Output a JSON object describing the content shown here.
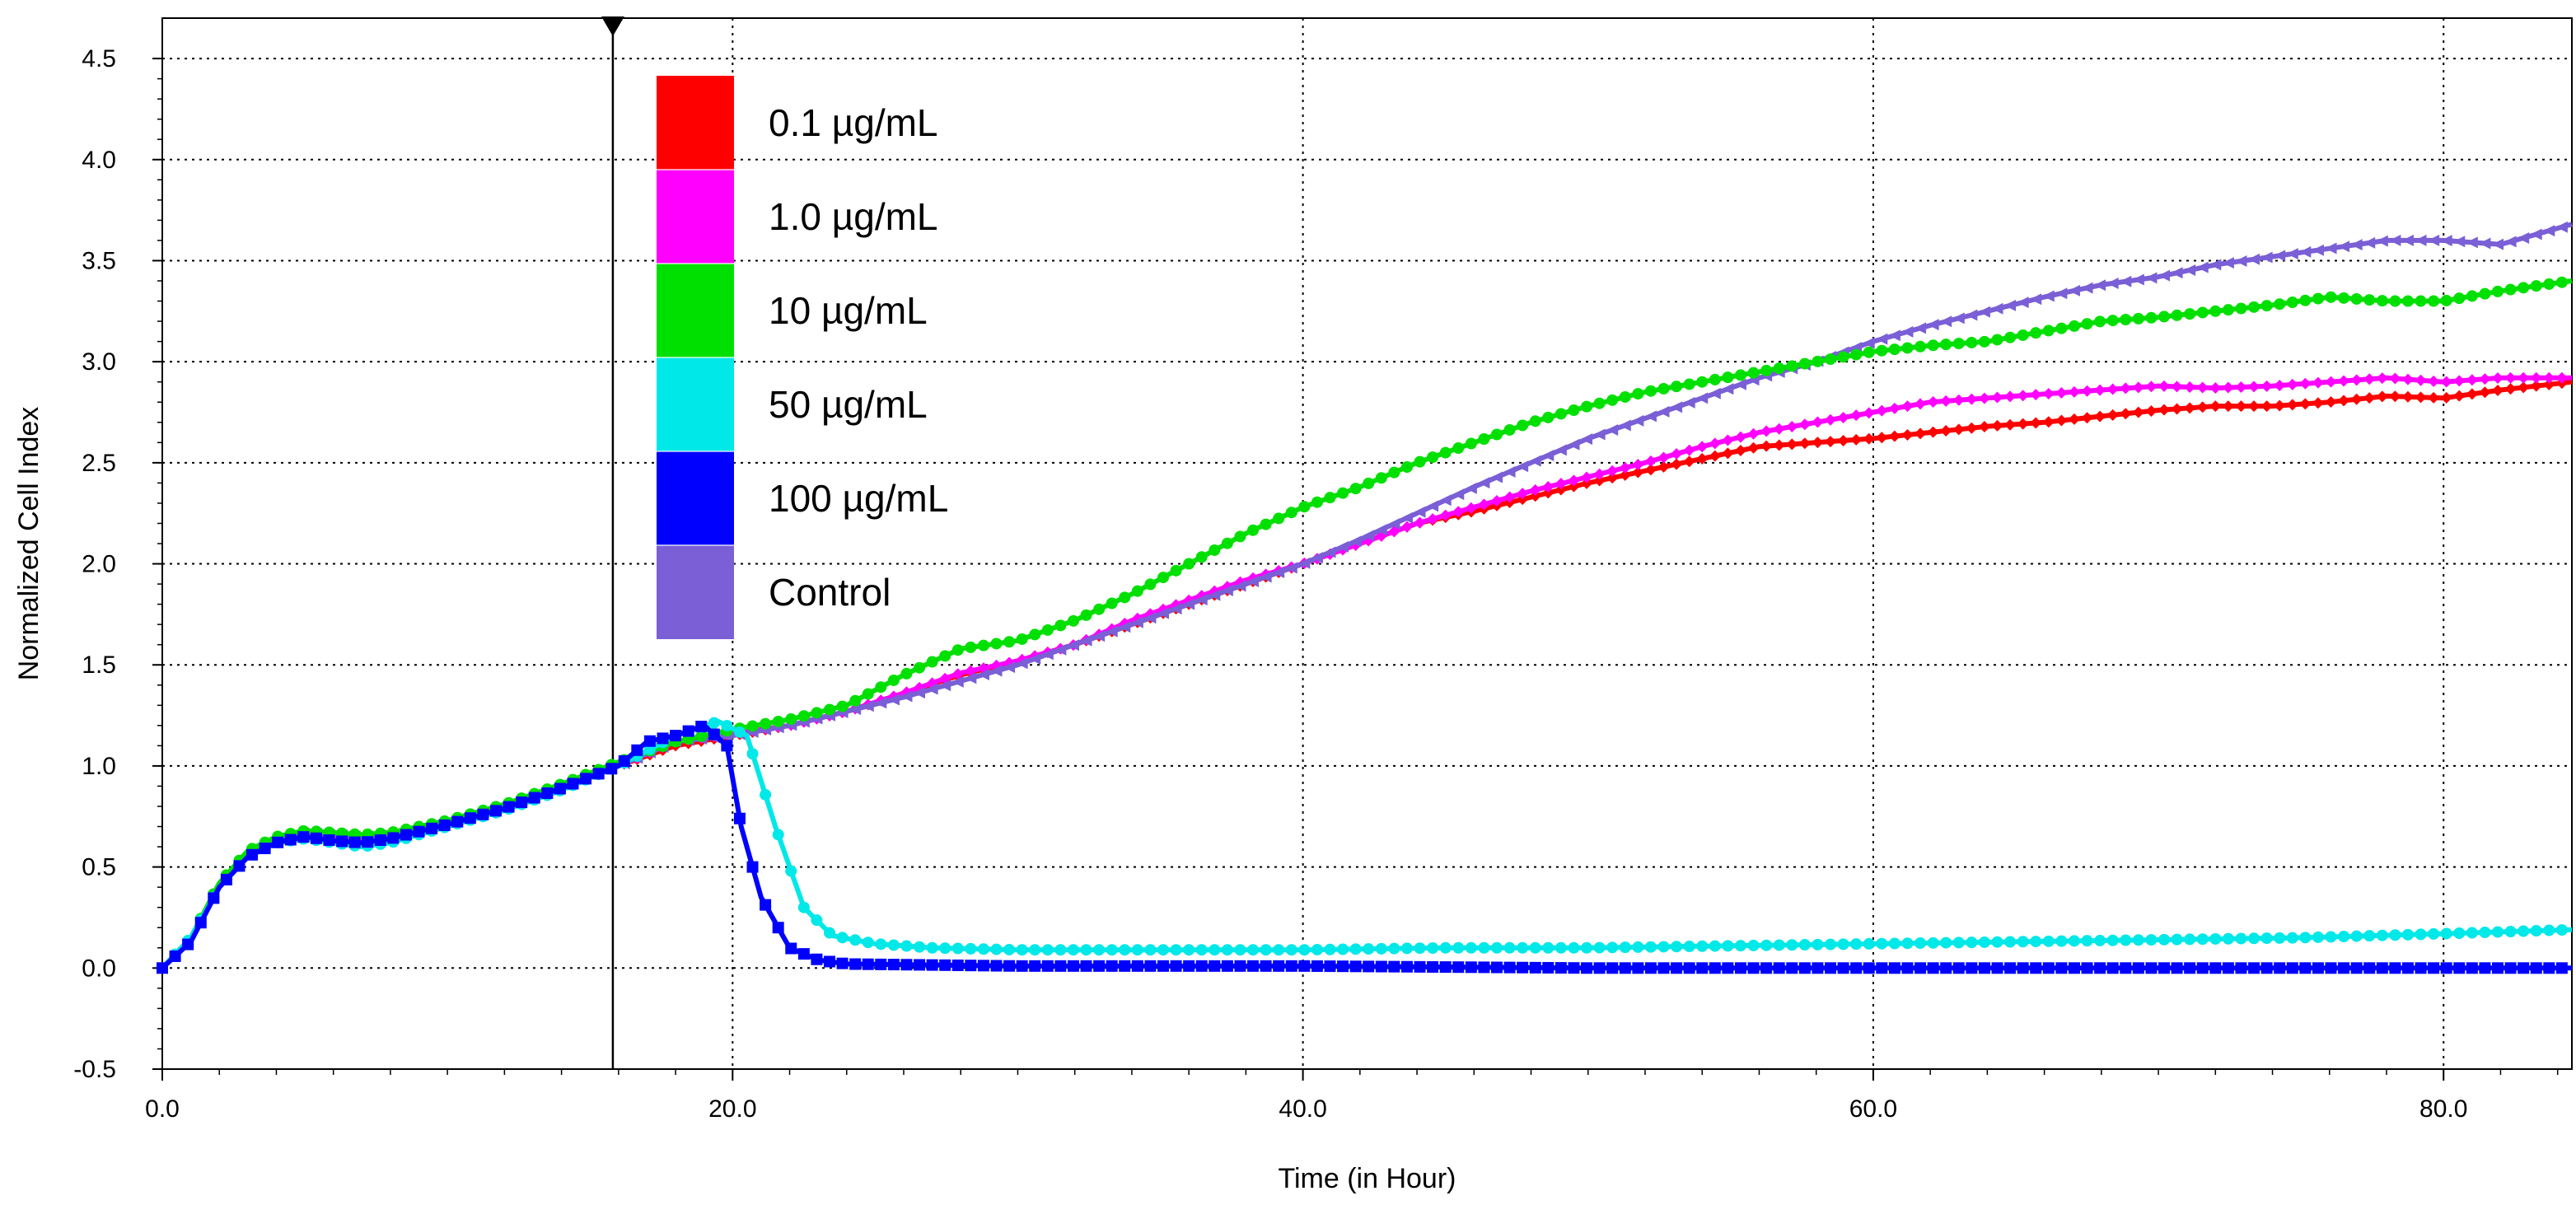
{
  "chart_data": {
    "type": "line",
    "title": "",
    "xlabel": "Time (in Hour)",
    "ylabel": "Normalized Cell Index",
    "xlim": [
      0,
      84.5
    ],
    "ylim": [
      -0.5,
      4.7
    ],
    "grid": true,
    "x_ticks": [
      0,
      20,
      40,
      60,
      80
    ],
    "x_tick_labels": [
      "0.0",
      "20.0",
      "40.0",
      "60.0",
      "80.0"
    ],
    "y_ticks": [
      -0.5,
      0,
      0.5,
      1,
      1.5,
      2,
      2.5,
      3,
      3.5,
      4,
      4.5
    ],
    "y_tick_labels": [
      "-0.5",
      "0.0",
      "0.5",
      "1.0",
      "1.5",
      "2.0",
      "2.5",
      "3.0",
      "3.5",
      "4.0",
      "4.5"
    ],
    "treatment_marker_x": 15.8,
    "legend_position": "top-left",
    "series": [
      {
        "name": "0.1 µg/mL",
        "color": "#ff0000",
        "marker": "diamond",
        "points": [
          [
            0,
            0
          ],
          [
            1,
            0.15
          ],
          [
            2,
            0.4
          ],
          [
            3,
            0.55
          ],
          [
            4,
            0.62
          ],
          [
            5,
            0.66
          ],
          [
            6,
            0.64
          ],
          [
            7,
            0.63
          ],
          [
            8,
            0.65
          ],
          [
            10,
            0.72
          ],
          [
            12,
            0.8
          ],
          [
            14,
            0.9
          ],
          [
            16,
            1.0
          ],
          [
            18,
            1.1
          ],
          [
            20,
            1.15
          ],
          [
            22,
            1.2
          ],
          [
            24,
            1.27
          ],
          [
            26,
            1.36
          ],
          [
            28,
            1.45
          ],
          [
            30,
            1.52
          ],
          [
            32,
            1.6
          ],
          [
            34,
            1.7
          ],
          [
            36,
            1.8
          ],
          [
            38,
            1.9
          ],
          [
            40,
            2.0
          ],
          [
            42,
            2.1
          ],
          [
            44,
            2.2
          ],
          [
            46,
            2.26
          ],
          [
            48,
            2.33
          ],
          [
            50,
            2.4
          ],
          [
            52,
            2.46
          ],
          [
            54,
            2.52
          ],
          [
            56,
            2.58
          ],
          [
            58,
            2.6
          ],
          [
            60,
            2.62
          ],
          [
            62,
            2.65
          ],
          [
            64,
            2.68
          ],
          [
            66,
            2.7
          ],
          [
            68,
            2.73
          ],
          [
            70,
            2.76
          ],
          [
            72,
            2.78
          ],
          [
            74,
            2.78
          ],
          [
            76,
            2.8
          ],
          [
            78,
            2.83
          ],
          [
            80,
            2.82
          ],
          [
            82,
            2.86
          ],
          [
            84.5,
            2.9
          ]
        ]
      },
      {
        "name": "1.0 µg/mL",
        "color": "#ff00ff",
        "marker": "diamond",
        "points": [
          [
            0,
            0
          ],
          [
            1,
            0.15
          ],
          [
            2,
            0.4
          ],
          [
            3,
            0.56
          ],
          [
            4,
            0.63
          ],
          [
            5,
            0.67
          ],
          [
            6,
            0.65
          ],
          [
            7,
            0.64
          ],
          [
            8,
            0.66
          ],
          [
            10,
            0.72
          ],
          [
            12,
            0.8
          ],
          [
            14,
            0.9
          ],
          [
            16,
            1.0
          ],
          [
            18,
            1.12
          ],
          [
            20,
            1.16
          ],
          [
            22,
            1.2
          ],
          [
            24,
            1.27
          ],
          [
            26,
            1.36
          ],
          [
            28,
            1.46
          ],
          [
            30,
            1.52
          ],
          [
            32,
            1.6
          ],
          [
            34,
            1.72
          ],
          [
            36,
            1.82
          ],
          [
            38,
            1.92
          ],
          [
            40,
            2.0
          ],
          [
            42,
            2.1
          ],
          [
            44,
            2.2
          ],
          [
            46,
            2.28
          ],
          [
            48,
            2.36
          ],
          [
            50,
            2.43
          ],
          [
            52,
            2.5
          ],
          [
            54,
            2.58
          ],
          [
            56,
            2.65
          ],
          [
            58,
            2.7
          ],
          [
            60,
            2.75
          ],
          [
            62,
            2.8
          ],
          [
            64,
            2.82
          ],
          [
            66,
            2.84
          ],
          [
            68,
            2.86
          ],
          [
            70,
            2.88
          ],
          [
            72,
            2.87
          ],
          [
            74,
            2.88
          ],
          [
            76,
            2.9
          ],
          [
            78,
            2.92
          ],
          [
            80,
            2.9
          ],
          [
            82,
            2.92
          ],
          [
            84.5,
            2.92
          ]
        ]
      },
      {
        "name": "10 µg/mL",
        "color": "#00e000",
        "marker": "circle",
        "points": [
          [
            0,
            0
          ],
          [
            1,
            0.15
          ],
          [
            2,
            0.42
          ],
          [
            3,
            0.58
          ],
          [
            4,
            0.65
          ],
          [
            5,
            0.68
          ],
          [
            6,
            0.67
          ],
          [
            7,
            0.66
          ],
          [
            8,
            0.67
          ],
          [
            10,
            0.73
          ],
          [
            12,
            0.81
          ],
          [
            14,
            0.91
          ],
          [
            16,
            1.02
          ],
          [
            18,
            1.12
          ],
          [
            20,
            1.18
          ],
          [
            22,
            1.23
          ],
          [
            24,
            1.3
          ],
          [
            26,
            1.45
          ],
          [
            28,
            1.58
          ],
          [
            30,
            1.62
          ],
          [
            32,
            1.72
          ],
          [
            34,
            1.85
          ],
          [
            36,
            2.0
          ],
          [
            38,
            2.15
          ],
          [
            40,
            2.28
          ],
          [
            42,
            2.38
          ],
          [
            44,
            2.5
          ],
          [
            46,
            2.6
          ],
          [
            48,
            2.7
          ],
          [
            50,
            2.78
          ],
          [
            52,
            2.85
          ],
          [
            54,
            2.9
          ],
          [
            56,
            2.95
          ],
          [
            58,
            3.0
          ],
          [
            60,
            3.05
          ],
          [
            62,
            3.08
          ],
          [
            64,
            3.1
          ],
          [
            66,
            3.15
          ],
          [
            68,
            3.2
          ],
          [
            70,
            3.22
          ],
          [
            72,
            3.25
          ],
          [
            74,
            3.28
          ],
          [
            76,
            3.32
          ],
          [
            78,
            3.3
          ],
          [
            80,
            3.3
          ],
          [
            82,
            3.35
          ],
          [
            84.5,
            3.4
          ]
        ]
      },
      {
        "name": "50 µg/mL",
        "color": "#00e8e8",
        "marker": "circle",
        "points": [
          [
            0,
            0
          ],
          [
            1,
            0.15
          ],
          [
            2,
            0.4
          ],
          [
            3,
            0.55
          ],
          [
            4,
            0.62
          ],
          [
            5,
            0.64
          ],
          [
            6,
            0.62
          ],
          [
            7,
            0.6
          ],
          [
            8,
            0.62
          ],
          [
            10,
            0.7
          ],
          [
            12,
            0.78
          ],
          [
            14,
            0.88
          ],
          [
            16,
            1.0
          ],
          [
            18,
            1.15
          ],
          [
            19.5,
            1.22
          ],
          [
            20.5,
            1.15
          ],
          [
            21.5,
            0.7
          ],
          [
            22.5,
            0.3
          ],
          [
            23.5,
            0.16
          ],
          [
            25,
            0.12
          ],
          [
            27,
            0.1
          ],
          [
            30,
            0.09
          ],
          [
            35,
            0.09
          ],
          [
            40,
            0.09
          ],
          [
            45,
            0.1
          ],
          [
            50,
            0.1
          ],
          [
            55,
            0.11
          ],
          [
            60,
            0.12
          ],
          [
            65,
            0.13
          ],
          [
            70,
            0.14
          ],
          [
            75,
            0.15
          ],
          [
            80,
            0.17
          ],
          [
            84.5,
            0.19
          ]
        ]
      },
      {
        "name": "100 µg/mL",
        "color": "#0000ff",
        "marker": "square",
        "points": [
          [
            0,
            0
          ],
          [
            1,
            0.13
          ],
          [
            2,
            0.4
          ],
          [
            3,
            0.55
          ],
          [
            4,
            0.62
          ],
          [
            5,
            0.65
          ],
          [
            6,
            0.63
          ],
          [
            7,
            0.62
          ],
          [
            8,
            0.64
          ],
          [
            10,
            0.71
          ],
          [
            12,
            0.79
          ],
          [
            14,
            0.89
          ],
          [
            16,
            1.0
          ],
          [
            17,
            1.12
          ],
          [
            18,
            1.15
          ],
          [
            19,
            1.2
          ],
          [
            19.8,
            1.1
          ],
          [
            20.3,
            0.7
          ],
          [
            21,
            0.35
          ],
          [
            22,
            0.1
          ],
          [
            23,
            0.04
          ],
          [
            24,
            0.02
          ],
          [
            30,
            0.01
          ],
          [
            40,
            0.01
          ],
          [
            50,
            0.0
          ],
          [
            60,
            0.0
          ],
          [
            70,
            0.0
          ],
          [
            84.5,
            0.0
          ]
        ]
      },
      {
        "name": "Control",
        "color": "#7a5fd6",
        "marker": "triangle",
        "points": [
          [
            0,
            0
          ],
          [
            1,
            0.15
          ],
          [
            2,
            0.4
          ],
          [
            3,
            0.56
          ],
          [
            4,
            0.64
          ],
          [
            5,
            0.67
          ],
          [
            6,
            0.66
          ],
          [
            7,
            0.65
          ],
          [
            8,
            0.66
          ],
          [
            10,
            0.72
          ],
          [
            12,
            0.8
          ],
          [
            14,
            0.9
          ],
          [
            16,
            1.0
          ],
          [
            18,
            1.12
          ],
          [
            20,
            1.15
          ],
          [
            22,
            1.2
          ],
          [
            24,
            1.27
          ],
          [
            26,
            1.34
          ],
          [
            28,
            1.42
          ],
          [
            30,
            1.5
          ],
          [
            32,
            1.6
          ],
          [
            34,
            1.7
          ],
          [
            36,
            1.8
          ],
          [
            38,
            1.9
          ],
          [
            40,
            2.0
          ],
          [
            42,
            2.12
          ],
          [
            44,
            2.25
          ],
          [
            46,
            2.38
          ],
          [
            48,
            2.5
          ],
          [
            50,
            2.62
          ],
          [
            52,
            2.72
          ],
          [
            54,
            2.82
          ],
          [
            56,
            2.92
          ],
          [
            58,
            3.0
          ],
          [
            60,
            3.1
          ],
          [
            62,
            3.18
          ],
          [
            64,
            3.25
          ],
          [
            66,
            3.32
          ],
          [
            68,
            3.38
          ],
          [
            70,
            3.42
          ],
          [
            72,
            3.48
          ],
          [
            74,
            3.52
          ],
          [
            76,
            3.56
          ],
          [
            78,
            3.6
          ],
          [
            80,
            3.6
          ],
          [
            82,
            3.58
          ],
          [
            84.5,
            3.68
          ]
        ]
      }
    ]
  }
}
